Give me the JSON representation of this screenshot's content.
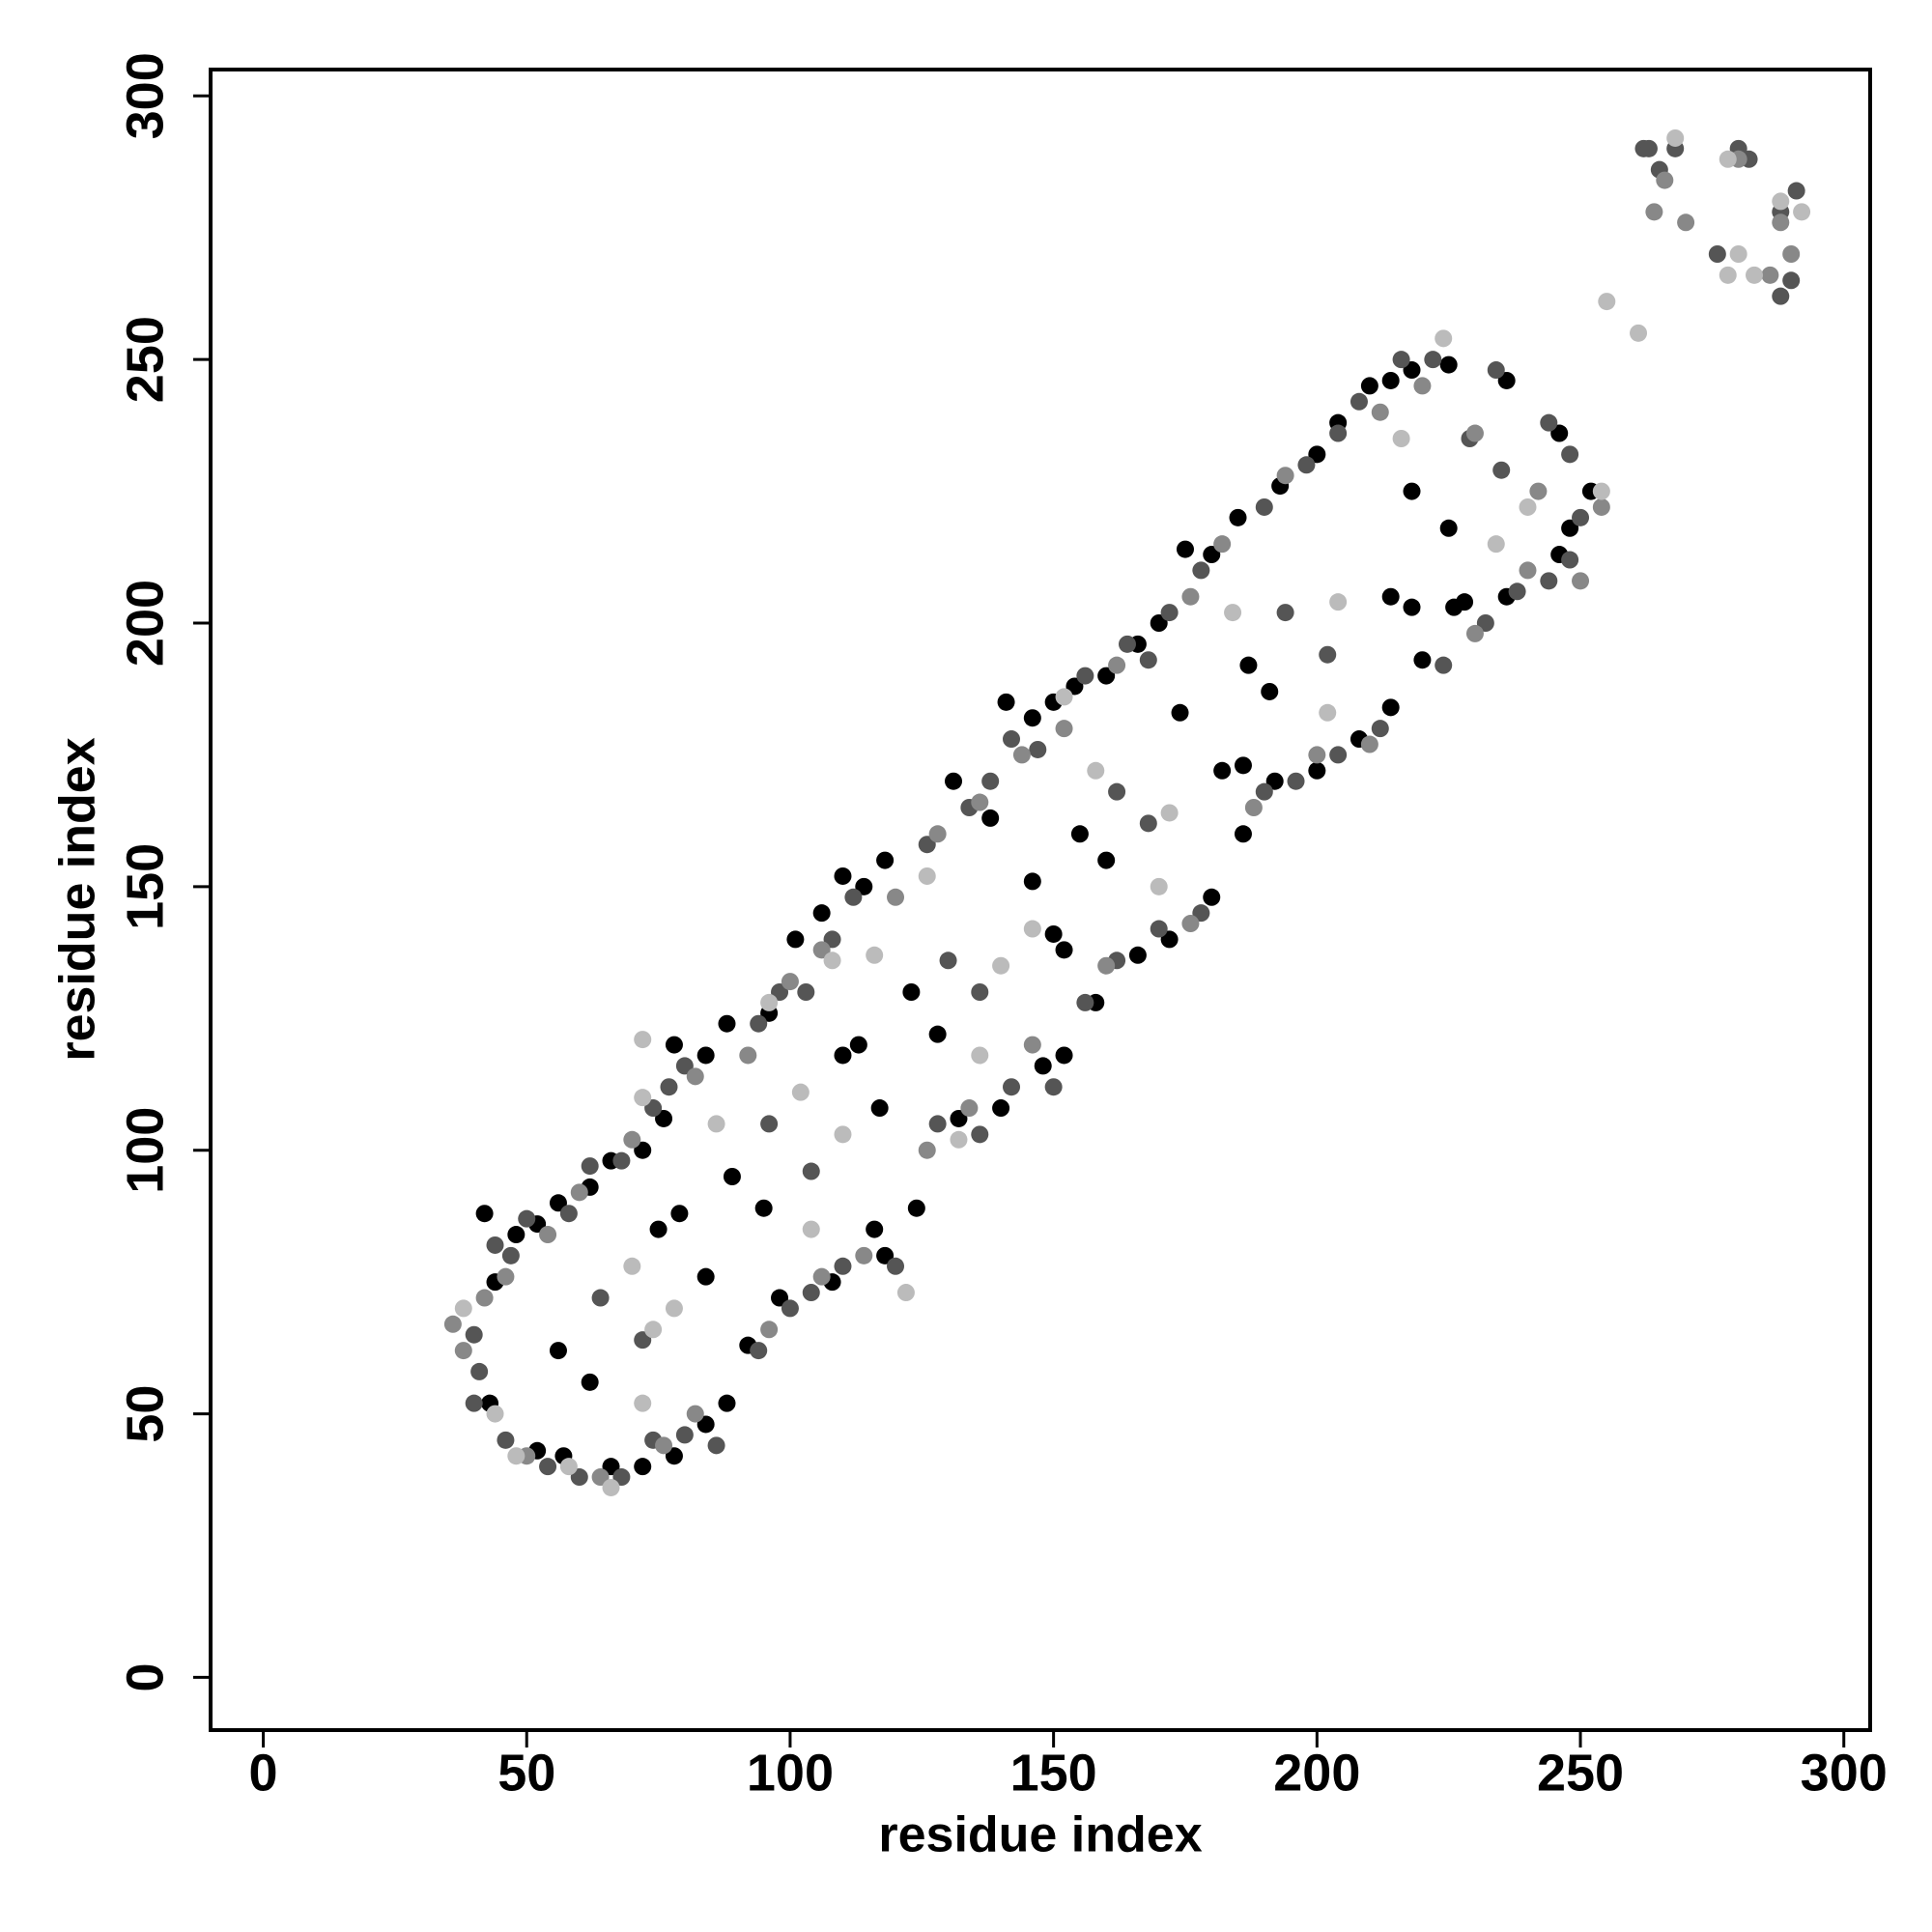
{
  "chart_data": {
    "type": "scatter",
    "xlabel": "residue index",
    "ylabel": "residue index",
    "xlim": [
      -10,
      305
    ],
    "ylim": [
      -10,
      305
    ],
    "xticks": [
      0,
      50,
      100,
      150,
      200,
      250,
      300
    ],
    "yticks": [
      0,
      50,
      100,
      150,
      200,
      250,
      300
    ],
    "series": [
      {
        "color": "#000000",
        "x": [
          42,
          44,
          48,
          52,
          56,
          62,
          66,
          72,
          76,
          78,
          84,
          88,
          96,
          101,
          106,
          110,
          114,
          118,
          123,
          131,
          138,
          141,
          146,
          150,
          154,
          160,
          166,
          170,
          175,
          180,
          185,
          193,
          200,
          204,
          210,
          214,
          218,
          225,
          236,
          246,
          252,
          187,
          56,
          62,
          89,
          95,
          128,
          155,
          160,
          191,
          218,
          225,
          43,
          52,
          57,
          66,
          72,
          78,
          84,
          88,
          92,
          98,
          108,
          116,
          118,
          124,
          132,
          140,
          148,
          152,
          158,
          166,
          172,
          180,
          186,
          192,
          200,
          208,
          214,
          220,
          228,
          236,
          246,
          248,
          75,
          79,
          84,
          110,
          113,
          117,
          146,
          150,
          152,
          174,
          182,
          186,
          214,
          218,
          226
        ],
        "y": [
          88,
          75,
          84,
          86,
          90,
          93,
          98,
          100,
          106,
          120,
          118,
          124,
          126,
          140,
          145,
          152,
          150,
          155,
          130,
          170,
          163,
          185,
          182,
          185,
          188,
          190,
          196,
          200,
          214,
          213,
          220,
          226,
          232,
          238,
          245,
          246,
          248,
          249,
          246,
          236,
          225,
          192,
          62,
          56,
          95,
          89,
          122,
          160,
          155,
          187,
          225,
          218,
          52,
          43,
          42,
          40,
          40,
          42,
          48,
          52,
          63,
          72,
          75,
          85,
          80,
          89,
          106,
          108,
          116,
          118,
          128,
          137,
          140,
          148,
          160,
          170,
          172,
          178,
          184,
          193,
          204,
          205,
          213,
          218,
          85,
          88,
          76,
          118,
          120,
          108,
          151,
          141,
          138,
          183,
          172,
          173,
          205,
          203,
          203
        ]
      },
      {
        "color": "#555555",
        "x": [
          40,
          41,
          40,
          44,
          47,
          50,
          58,
          62,
          68,
          74,
          77,
          80,
          94,
          98,
          103,
          108,
          112,
          126,
          134,
          138,
          142,
          147,
          156,
          164,
          168,
          172,
          178,
          190,
          198,
          204,
          208,
          216,
          222,
          234,
          244,
          248,
          250,
          248,
          244,
          238,
          46,
          54,
          60,
          68,
          74,
          80,
          86,
          94,
          100,
          104,
          110,
          120,
          128,
          136,
          142,
          150,
          156,
          162,
          170,
          178,
          190,
          196,
          204,
          212,
          224,
          232,
          64,
          72,
          96,
          104,
          130,
          136,
          162,
          168,
          194,
          202,
          229,
          235,
          262,
          265,
          268,
          280,
          282,
          288,
          291,
          290,
          288,
          263,
          276
        ],
        "y": [
          65,
          58,
          52,
          82,
          80,
          87,
          88,
          97,
          98,
          108,
          112,
          116,
          124,
          130,
          130,
          140,
          148,
          158,
          165,
          170,
          178,
          176,
          190,
          196,
          193,
          202,
          210,
          222,
          230,
          236,
          242,
          250,
          250,
          248,
          238,
          232,
          220,
          212,
          208,
          206,
          45,
          40,
          38,
          38,
          45,
          46,
          44,
          62,
          70,
          73,
          78,
          78,
          105,
          103,
          112,
          112,
          128,
          136,
          142,
          145,
          168,
          170,
          175,
          180,
          192,
          200,
          72,
          64,
          105,
          96,
          136,
          130,
          168,
          162,
          202,
          194,
          235,
          229,
          290,
          286,
          290,
          290,
          288,
          278,
          282,
          265,
          262,
          290,
          270
        ]
      },
      {
        "color": "#888888",
        "x": [
          36,
          38,
          42,
          46,
          54,
          60,
          70,
          82,
          92,
          100,
          106,
          120,
          128,
          136,
          144,
          152,
          162,
          176,
          182,
          194,
          212,
          220,
          230,
          242,
          254,
          50,
          64,
          76,
          82,
          96,
          106,
          114,
          126,
          134,
          146,
          160,
          176,
          188,
          200,
          210,
          230,
          240,
          250,
          264,
          270,
          280,
          288,
          290,
          286,
          266
        ],
        "y": [
          67,
          62,
          72,
          76,
          84,
          92,
          102,
          114,
          118,
          132,
          138,
          148,
          160,
          166,
          175,
          180,
          192,
          205,
          215,
          228,
          240,
          245,
          236,
          225,
          222,
          42,
          38,
          44,
          50,
          66,
          76,
          80,
          100,
          108,
          120,
          135,
          143,
          165,
          175,
          177,
          198,
          210,
          208,
          278,
          276,
          288,
          276,
          270,
          266,
          284
        ]
      },
      {
        "color": "#bbbbbb",
        "x": [
          38,
          44,
          48,
          58,
          66,
          72,
          72,
          70,
          74,
          78,
          86,
          102,
          104,
          110,
          116,
          122,
          132,
          136,
          140,
          146,
          158,
          170,
          172,
          184,
          202,
          216,
          234,
          240,
          255,
          261,
          278,
          278,
          283,
          288,
          292,
          280,
          268,
          72,
          96,
          108,
          126,
          152,
          204,
          224,
          254
        ],
        "y": [
          70,
          50,
          42,
          40,
          36,
          121,
          110,
          78,
          66,
          70,
          105,
          111,
          85,
          103,
          137,
          73,
          102,
          118,
          135,
          142,
          172,
          150,
          164,
          202,
          183,
          235,
          215,
          222,
          261,
          255,
          288,
          266,
          266,
          280,
          278,
          270,
          292,
          52,
          128,
          136,
          152,
          186,
          204,
          254,
          225
        ]
      }
    ]
  }
}
